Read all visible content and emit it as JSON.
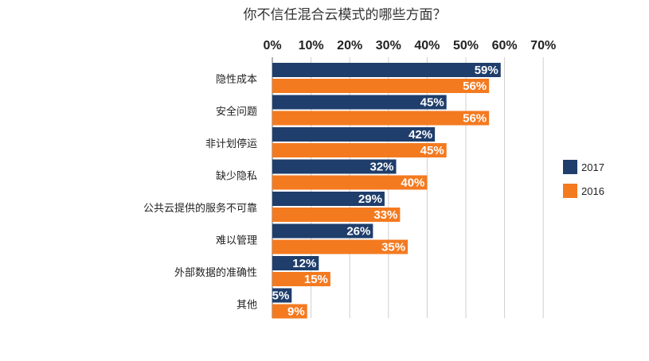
{
  "chart_data": {
    "type": "bar",
    "orientation": "horizontal",
    "title": "你不信任混合云模式的哪些方面？",
    "categories": [
      "隐性成本",
      "安全问题",
      "非计划停运",
      "缺少隐私",
      "公共云提供的服务不可靠",
      "难以管理",
      "外部数据的准确性",
      "其他"
    ],
    "series": [
      {
        "name": "2017",
        "color": "#1f3e6b",
        "values": [
          59,
          45,
          42,
          32,
          29,
          26,
          12,
          5
        ]
      },
      {
        "name": "2016",
        "color": "#f47a20",
        "values": [
          56,
          56,
          45,
          40,
          33,
          35,
          15,
          9
        ]
      }
    ],
    "x_ticks": [
      "0%",
      "10%",
      "20%",
      "30%",
      "40%",
      "50%",
      "60%",
      "70%"
    ],
    "xlim": [
      0,
      70
    ],
    "value_suffix": "%",
    "axis_position": "top",
    "grid": true,
    "legend_position": "right"
  }
}
